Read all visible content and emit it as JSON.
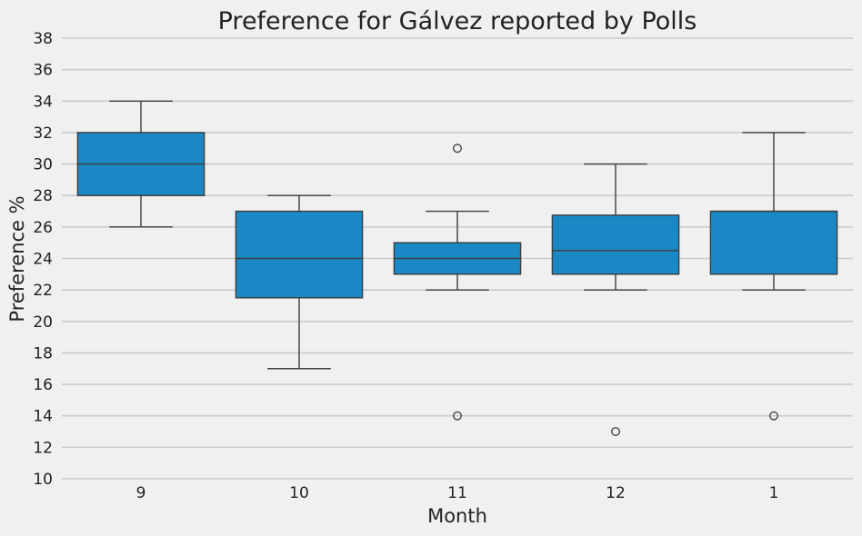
{
  "chart_data": {
    "type": "box",
    "title": "Preference for Gálvez reported by Polls",
    "xlabel": "Month",
    "ylabel": "Preference %",
    "ylim": [
      10,
      38
    ],
    "yticks": [
      10,
      12,
      14,
      16,
      18,
      20,
      22,
      24,
      26,
      28,
      30,
      32,
      34,
      36,
      38
    ],
    "grid": true,
    "box_color": "#1a88c4",
    "background_color": "#f0f0f0",
    "categories": [
      "9",
      "10",
      "11",
      "12",
      "1"
    ],
    "boxes": [
      {
        "category": "9",
        "whisker_low": 26,
        "q1": 28,
        "median": 30,
        "q3": 32,
        "whisker_high": 34,
        "outliers": []
      },
      {
        "category": "10",
        "whisker_low": 17,
        "q1": 21.5,
        "median": 24,
        "q3": 27,
        "whisker_high": 28,
        "outliers": []
      },
      {
        "category": "11",
        "whisker_low": 22,
        "q1": 23,
        "median": 24,
        "q3": 25,
        "whisker_high": 27,
        "outliers": [
          31,
          14
        ]
      },
      {
        "category": "12",
        "whisker_low": 22,
        "q1": 23,
        "median": 24.5,
        "q3": 26.75,
        "whisker_high": 30,
        "outliers": [
          13
        ]
      },
      {
        "category": "1",
        "whisker_low": 22,
        "q1": 23,
        "median": 27,
        "q3": 27,
        "whisker_high": 32,
        "outliers": [
          14
        ]
      }
    ]
  }
}
